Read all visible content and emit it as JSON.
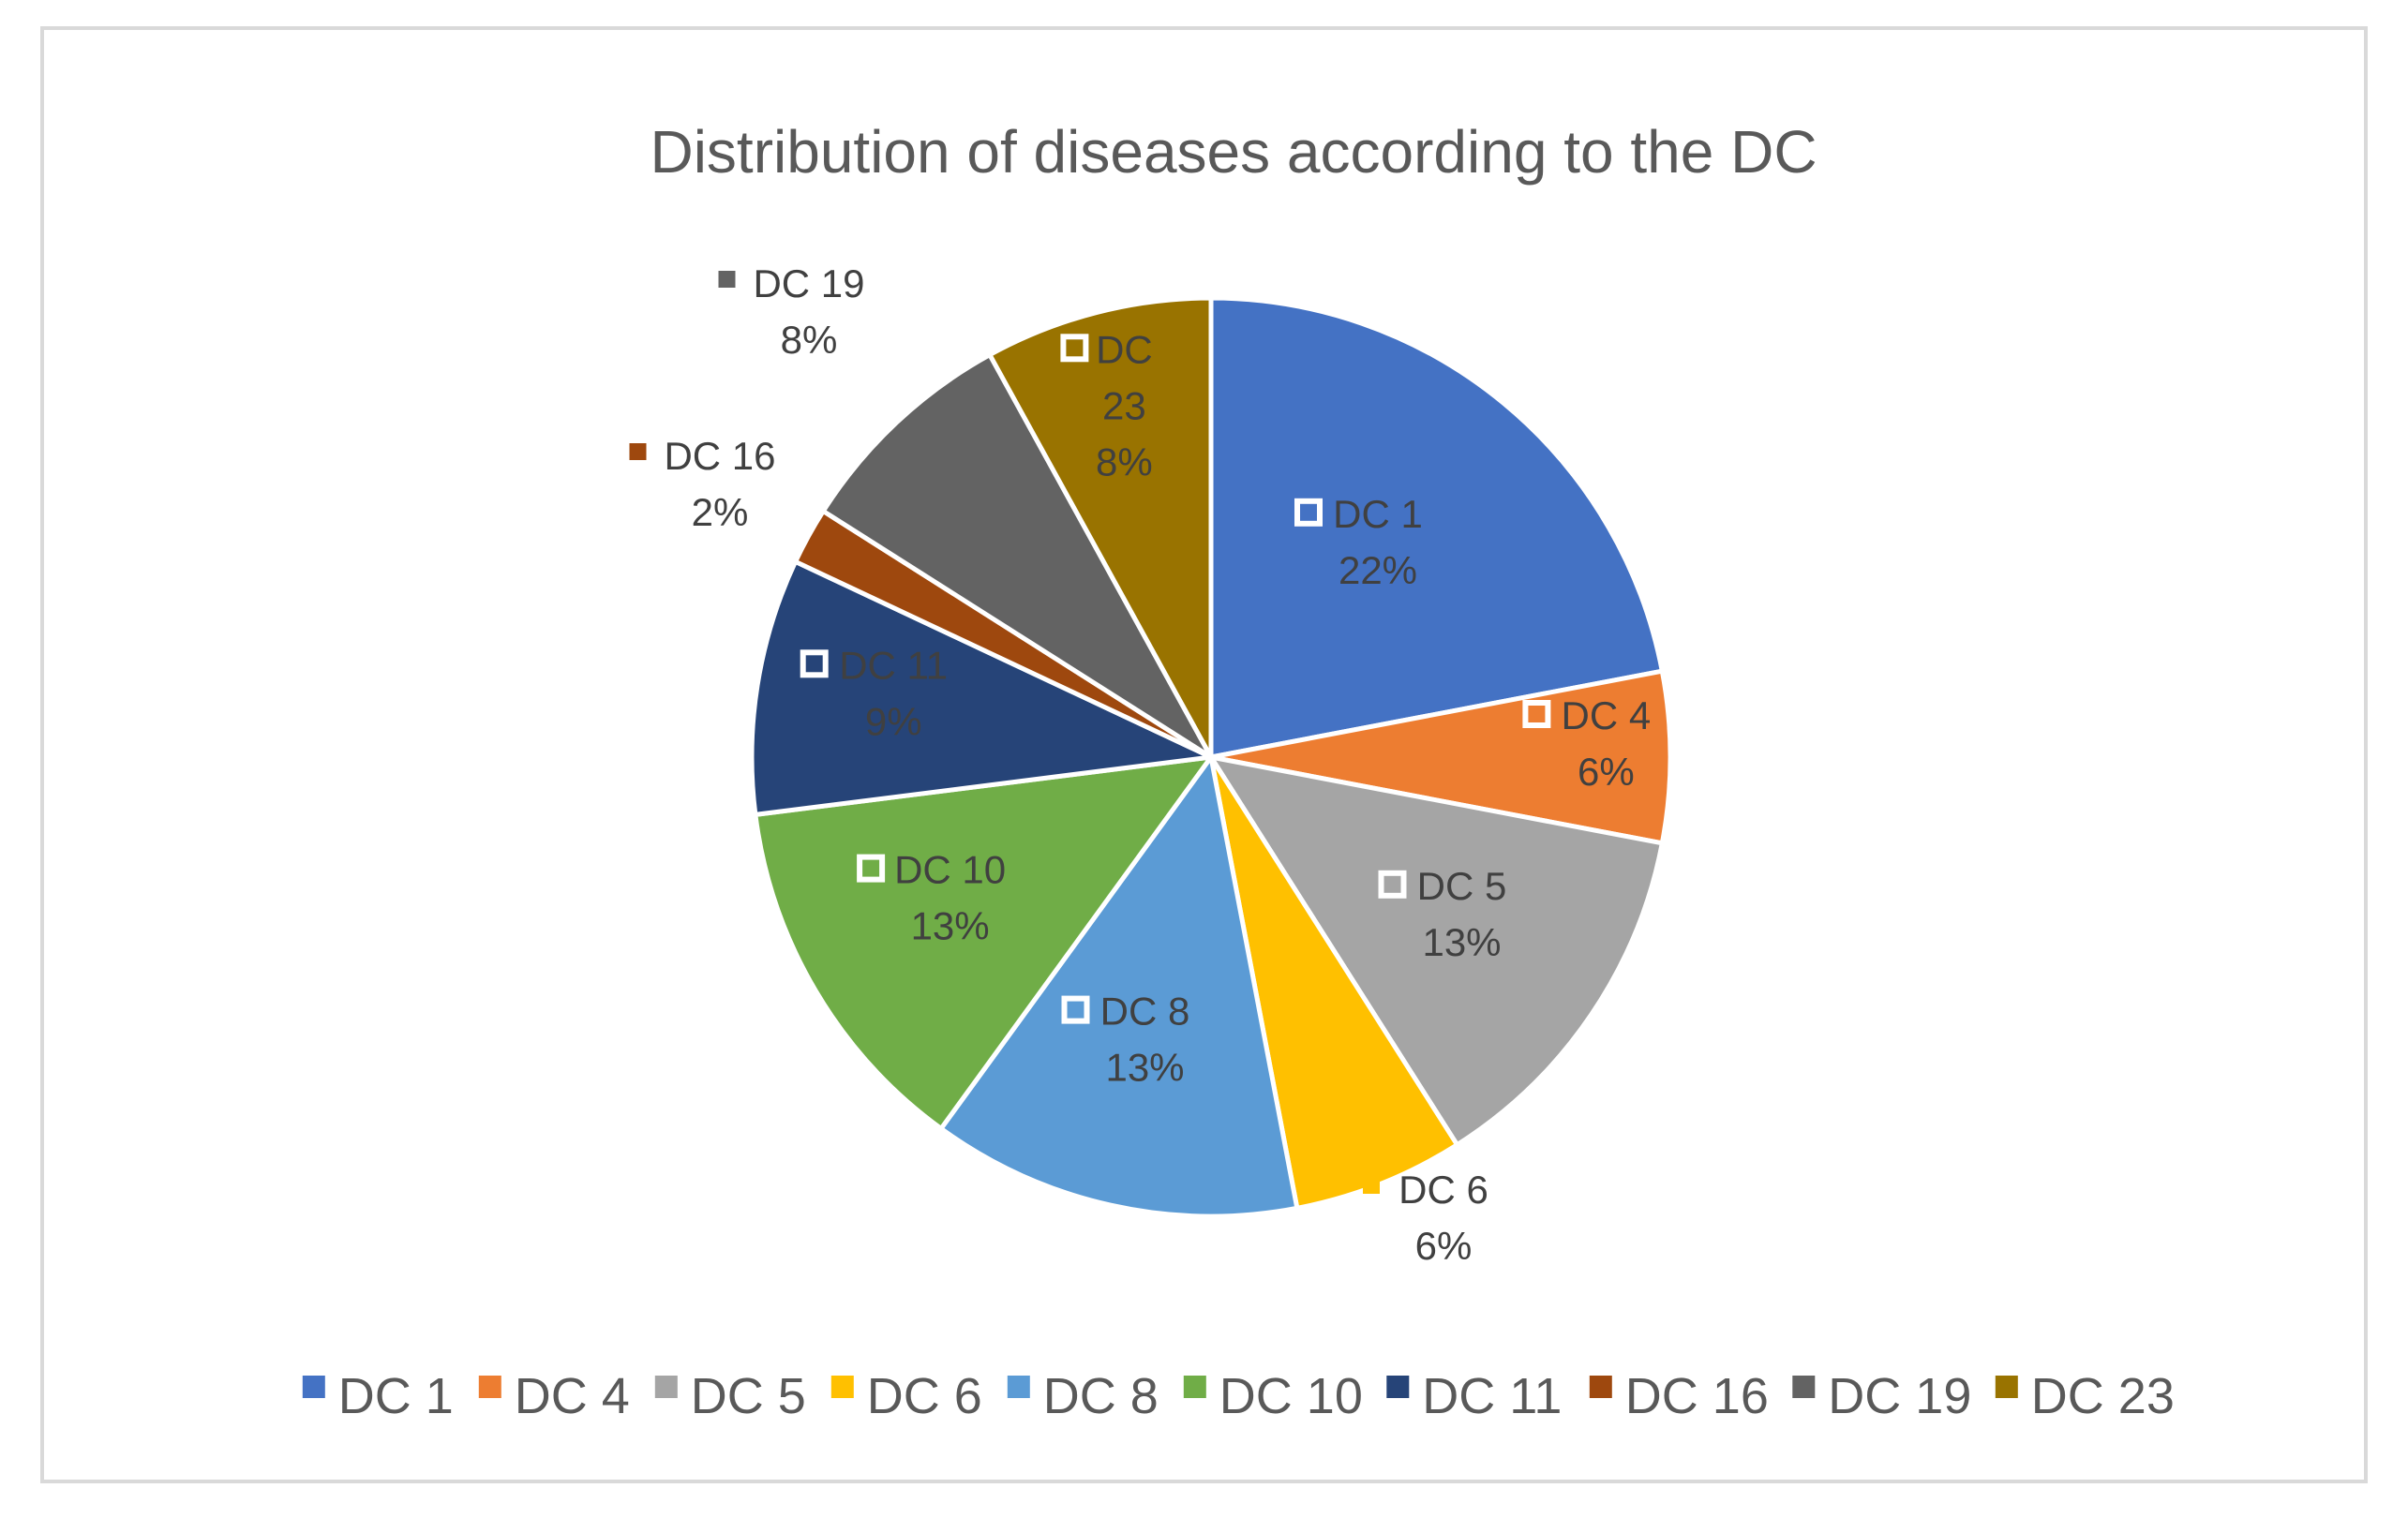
{
  "chart_data": {
    "type": "pie",
    "title": "Distribution of diseases according to the DC",
    "categories": [
      "DC 1",
      "DC 4",
      "DC 5",
      "DC 6",
      "DC 8",
      "DC 10",
      "DC 11",
      "DC 16",
      "DC 19",
      "DC 23"
    ],
    "values": [
      22,
      6,
      13,
      6,
      13,
      13,
      9,
      2,
      8,
      8
    ],
    "percent_labels": [
      "22%",
      "6%",
      "13%",
      "6%",
      "13%",
      "13%",
      "9%",
      "2%",
      "8%",
      "8%"
    ],
    "colors": [
      "#4472C4",
      "#ED7D31",
      "#A5A5A5",
      "#FFC000",
      "#5B9BD5",
      "#70AD47",
      "#264478",
      "#9E480E",
      "#636363",
      "#997300"
    ],
    "legend_position": "bottom",
    "data_labels": "category and percentage"
  }
}
